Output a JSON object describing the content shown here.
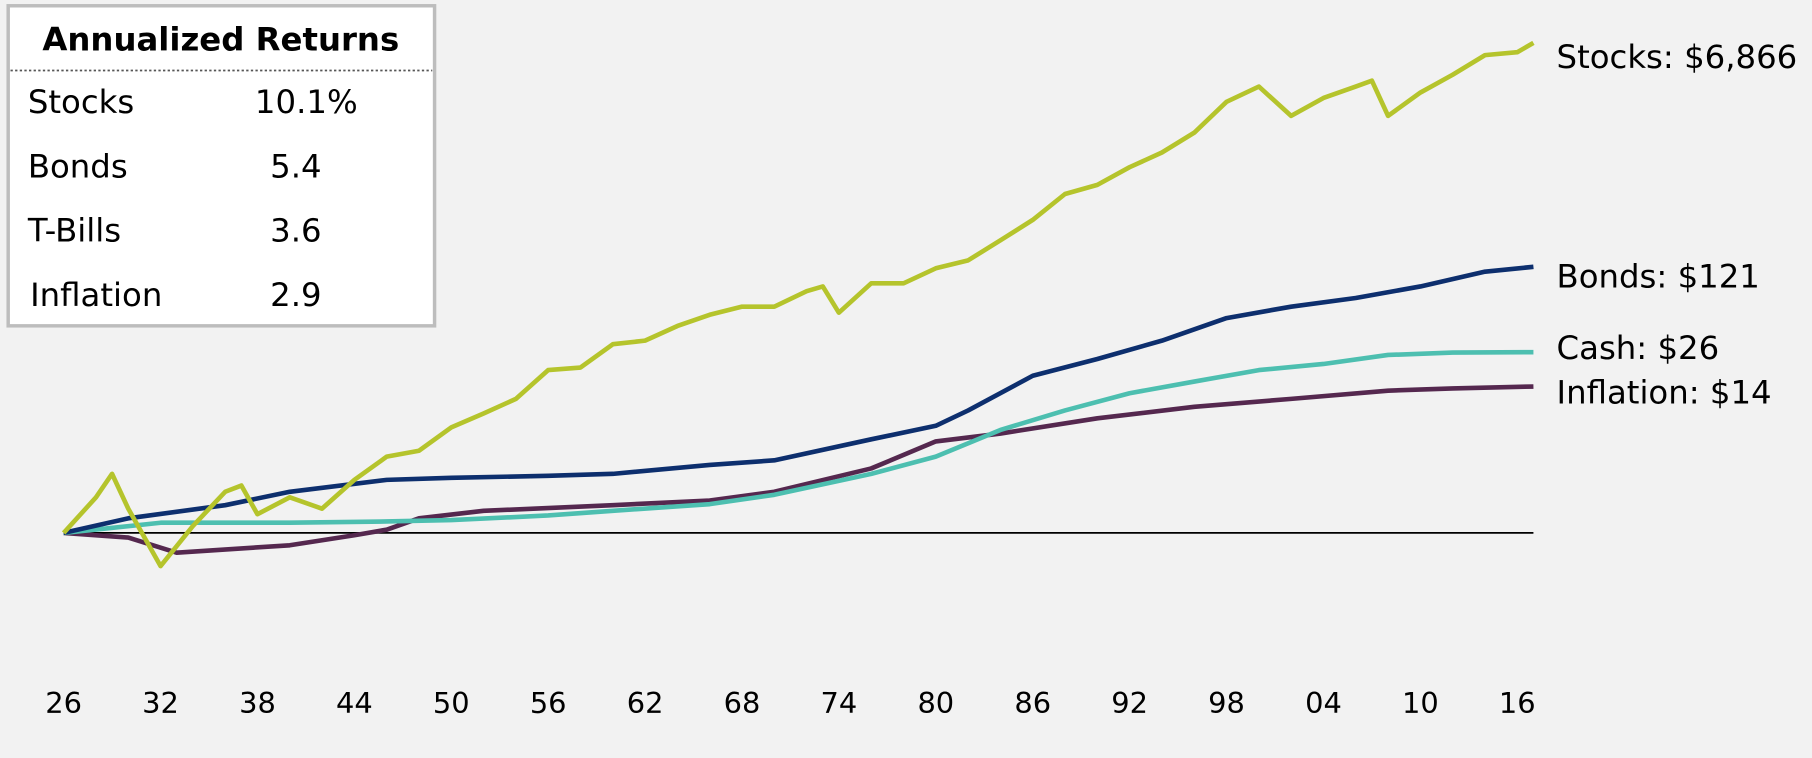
{
  "chart_data": {
    "type": "line",
    "log_scale": true,
    "reference_line": 1,
    "xlim": [
      1926,
      2017
    ],
    "ylim": [
      0.3,
      10000
    ],
    "xticks": [
      {
        "value": 1926,
        "label": "26"
      },
      {
        "value": 1932,
        "label": "32"
      },
      {
        "value": 1938,
        "label": "38"
      },
      {
        "value": 1944,
        "label": "44"
      },
      {
        "value": 1950,
        "label": "50"
      },
      {
        "value": 1956,
        "label": "56"
      },
      {
        "value": 1962,
        "label": "62"
      },
      {
        "value": 1968,
        "label": "68"
      },
      {
        "value": 1974,
        "label": "74"
      },
      {
        "value": 1980,
        "label": "80"
      },
      {
        "value": 1986,
        "label": "86"
      },
      {
        "value": 1992,
        "label": "92"
      },
      {
        "value": 1998,
        "label": "98"
      },
      {
        "value": 2004,
        "label": "04"
      },
      {
        "value": 2010,
        "label": "10"
      },
      {
        "value": 2016,
        "label": "16"
      }
    ],
    "table": {
      "title": "Annualized Returns",
      "rows": [
        [
          "Stocks",
          "10.1%"
        ],
        [
          "Bonds",
          "5.4"
        ],
        [
          "T-Bills",
          "3.6"
        ],
        [
          "Inflation",
          "2.9"
        ]
      ]
    },
    "series": [
      {
        "name": "Stocks: $6,866",
        "color": "#b5c42c",
        "x": [
          1926,
          1928,
          1929,
          1930,
          1932,
          1934,
          1936,
          1937,
          1938,
          1940,
          1942,
          1944,
          1946,
          1948,
          1950,
          1952,
          1954,
          1956,
          1958,
          1960,
          1962,
          1964,
          1966,
          1968,
          1970,
          1972,
          1973,
          1974,
          1976,
          1978,
          1980,
          1982,
          1984,
          1986,
          1988,
          1990,
          1992,
          1994,
          1996,
          1998,
          2000,
          2002,
          2004,
          2006,
          2007,
          2008,
          2010,
          2012,
          2014,
          2016,
          2017
        ],
        "values": [
          1,
          1.9,
          2.9,
          1.55,
          0.55,
          1.13,
          2.1,
          2.35,
          1.4,
          1.9,
          1.55,
          2.6,
          3.95,
          4.4,
          6.7,
          8.6,
          11.2,
          18.8,
          19.7,
          30,
          32,
          41.7,
          51,
          59,
          59,
          78,
          85,
          53,
          90,
          90,
          118,
          136,
          195,
          282,
          450,
          530,
          730,
          950,
          1360,
          2370,
          3120,
          1840,
          2540,
          3120,
          3470,
          1840,
          2800,
          3860,
          5500,
          5800,
          6866
        ]
      },
      {
        "name": "Bonds: $121",
        "color": "#0d2f6e",
        "x": [
          1926,
          1930,
          1936,
          1940,
          1946,
          1950,
          1956,
          1960,
          1966,
          1970,
          1976,
          1980,
          1982,
          1986,
          1990,
          1994,
          1998,
          2002,
          2006,
          2010,
          2014,
          2017
        ],
        "values": [
          1,
          1.3,
          1.65,
          2.1,
          2.6,
          2.7,
          2.8,
          2.9,
          3.4,
          3.7,
          5.4,
          6.9,
          9.1,
          17,
          23,
          32,
          48,
          59,
          69,
          85,
          111,
          121
        ]
      },
      {
        "name": "Cash: $26",
        "color": "#4dbfb0",
        "x": [
          1926,
          1932,
          1940,
          1946,
          1950,
          1956,
          1960,
          1966,
          1970,
          1976,
          1980,
          1984,
          1988,
          1992,
          1996,
          2000,
          2004,
          2008,
          2012,
          2017
        ],
        "values": [
          1,
          1.2,
          1.2,
          1.23,
          1.26,
          1.37,
          1.49,
          1.68,
          1.99,
          2.9,
          3.95,
          6.4,
          9.1,
          12.4,
          15.3,
          18.8,
          21,
          24.7,
          25.8,
          26
        ]
      },
      {
        "name": "Inflation: $14",
        "color": "#55284f",
        "x": [
          1926,
          1930,
          1933,
          1940,
          1944,
          1946,
          1948,
          1952,
          1960,
          1966,
          1970,
          1976,
          1980,
          1984,
          1990,
          1996,
          2002,
          2008,
          2012,
          2017
        ],
        "values": [
          1,
          0.92,
          0.7,
          0.8,
          0.96,
          1.06,
          1.3,
          1.49,
          1.65,
          1.79,
          2.1,
          3.2,
          5.2,
          6,
          7.9,
          9.7,
          11.2,
          13,
          13.5,
          14
        ]
      }
    ]
  }
}
